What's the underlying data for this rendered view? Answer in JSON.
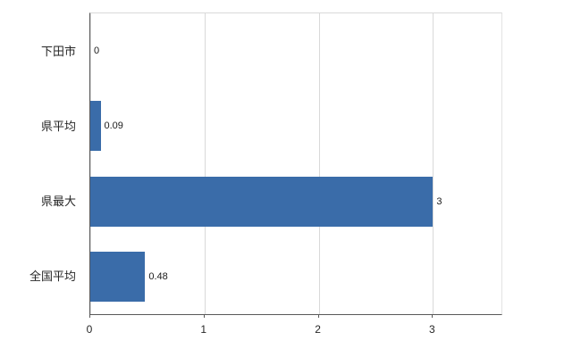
{
  "chart_data": {
    "type": "bar",
    "orientation": "horizontal",
    "title": "",
    "xlabel": "",
    "ylabel": "",
    "categories": [
      "下田市",
      "県平均",
      "県最大",
      "全国平均"
    ],
    "values": [
      0,
      0.09,
      3,
      0.48
    ],
    "value_labels": [
      "0",
      "0.09",
      "3",
      "0.48"
    ],
    "x_ticks": [
      0,
      1,
      2,
      3
    ],
    "x_tick_labels": [
      "0",
      "1",
      "2",
      "3"
    ],
    "xlim": [
      0,
      3.6
    ],
    "grid": "vertical-gridlines-on",
    "legend": "none",
    "bar_color": "#3a6ca9",
    "gridline_color": "#d9d9d9",
    "axis_color": "#595959",
    "text_color": "#262626"
  }
}
